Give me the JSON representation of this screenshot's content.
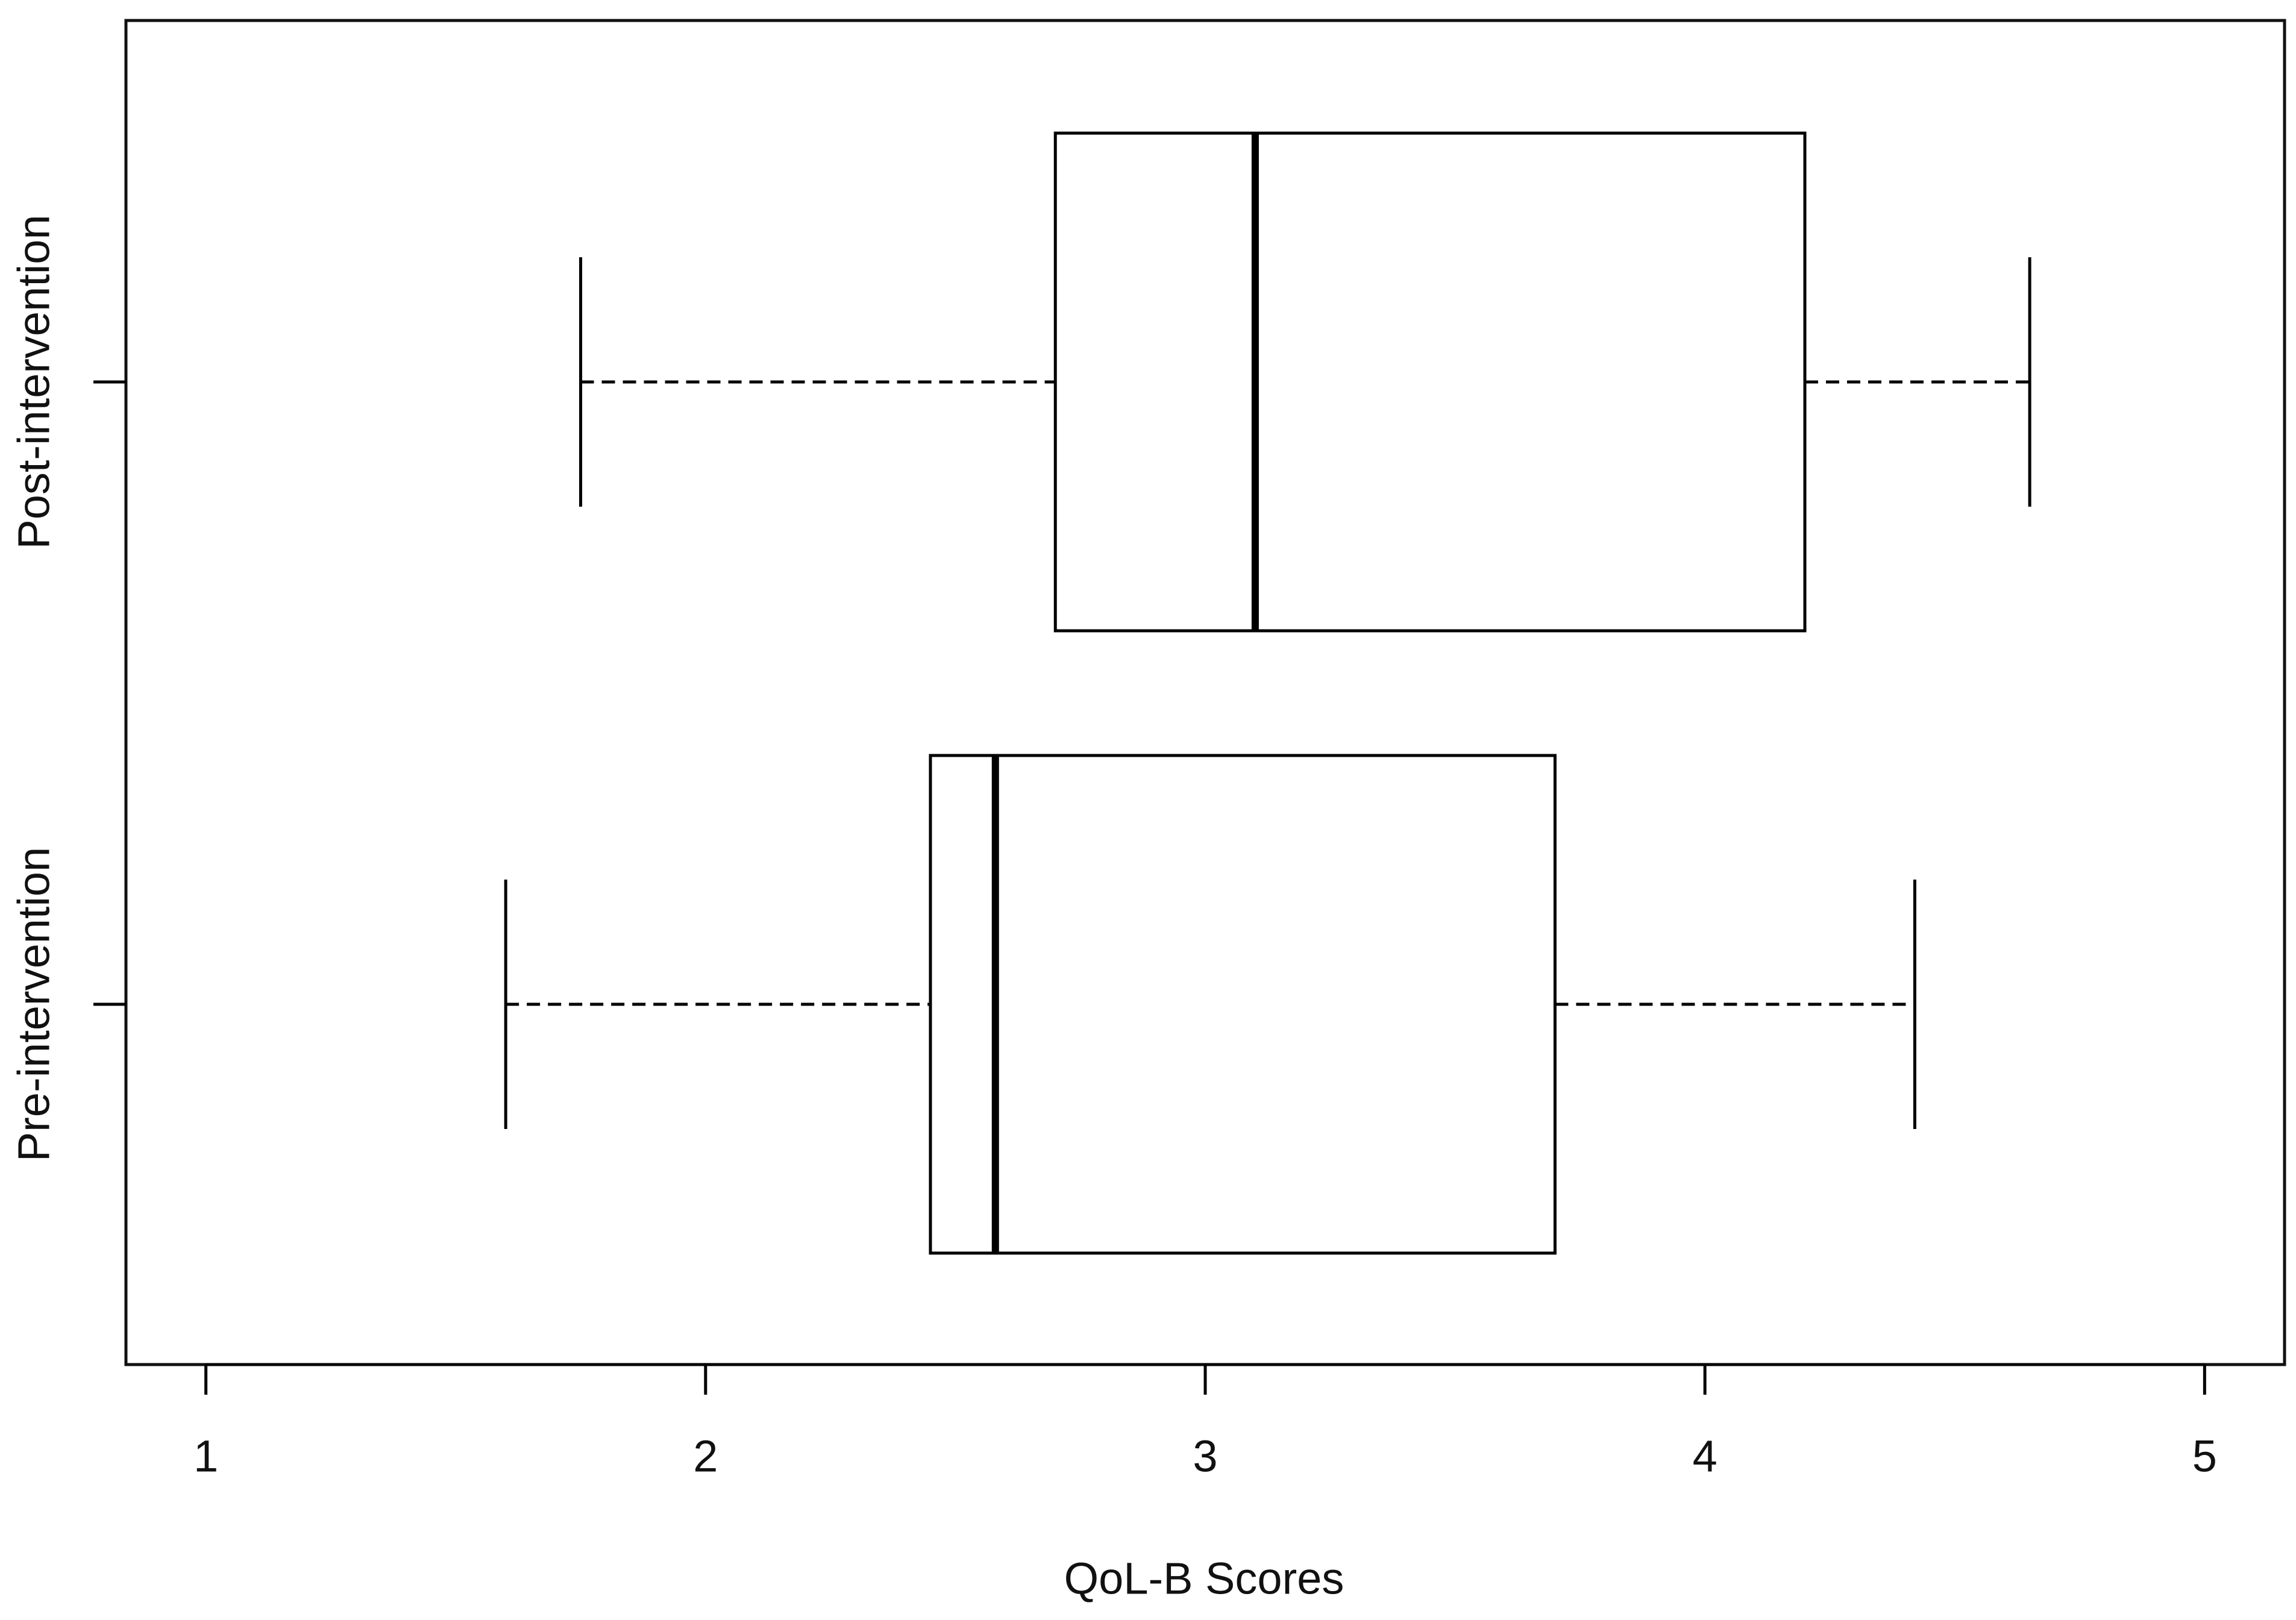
{
  "chart_data": {
    "type": "boxplot",
    "orientation": "horizontal",
    "x_label": "QoL-B Scores",
    "categories": [
      "Pre-intervention",
      "Post-intervention"
    ],
    "min": [
      1.6,
      1.75
    ],
    "q1": [
      2.45,
      2.7
    ],
    "median": [
      2.58,
      3.1
    ],
    "q3": [
      3.7,
      4.2
    ],
    "max": [
      4.42,
      4.65
    ],
    "xlim": [
      0.84,
      5.16
    ],
    "xticks": [
      1,
      2,
      3,
      4,
      5
    ],
    "color": "#000000"
  }
}
